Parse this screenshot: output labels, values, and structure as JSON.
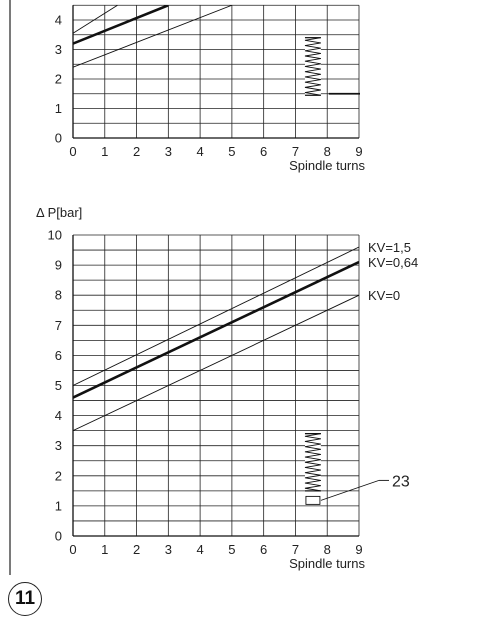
{
  "figure_badge": "11",
  "chart_data": [
    {
      "type": "line",
      "name_id": "top",
      "ylabel": "",
      "xlabel": "Spindle turns",
      "xlim": [
        0,
        9
      ],
      "ylim": [
        0,
        4.5
      ],
      "x_ticks": [
        "0",
        "1",
        "2",
        "3",
        "4",
        "5",
        "6",
        "7",
        "8",
        "9"
      ],
      "y_ticks": [
        "0",
        "1",
        "2",
        "3",
        "4"
      ],
      "grid": true,
      "series": [
        {
          "values": [
            [
              0,
              3.2
            ],
            [
              3,
              4.5
            ]
          ],
          "weight": "bold"
        },
        {
          "values": [
            [
              0,
              3.55
            ],
            [
              1.4,
              4.5
            ]
          ],
          "weight": "thin"
        },
        {
          "values": [
            [
              0,
              2.4
            ],
            [
              5,
              4.5
            ]
          ],
          "weight": "thin"
        }
      ],
      "spring_x_range": [
        7.3,
        7.8
      ],
      "spring_y_range": [
        1.45,
        3.4
      ]
    },
    {
      "type": "line",
      "name_id": "bottom",
      "ylabel": "Δ P[bar]",
      "xlabel": "Spindle turns",
      "xlim": [
        0,
        9
      ],
      "ylim": [
        0,
        10
      ],
      "x_ticks": [
        "0",
        "1",
        "2",
        "3",
        "4",
        "5",
        "6",
        "7",
        "8",
        "9"
      ],
      "y_ticks": [
        "0",
        "1",
        "2",
        "3",
        "4",
        "5",
        "6",
        "7",
        "8",
        "9",
        "10"
      ],
      "grid": true,
      "series": [
        {
          "name": "KV=1,5",
          "values": [
            [
              0,
              5.0
            ],
            [
              9,
              9.6
            ]
          ],
          "weight": "thin"
        },
        {
          "name": "KV=0,64",
          "values": [
            [
              0,
              4.6
            ],
            [
              9,
              9.1
            ]
          ],
          "weight": "bold"
        },
        {
          "name": "KV=0",
          "values": [
            [
              0,
              3.5
            ],
            [
              9,
              8.0
            ]
          ],
          "weight": "thin"
        }
      ],
      "spring_x_range": [
        7.3,
        7.8
      ],
      "spring_y_range": [
        1.5,
        3.4
      ],
      "callout_label": "23",
      "callout_target": [
        7.55,
        1.15
      ]
    }
  ]
}
